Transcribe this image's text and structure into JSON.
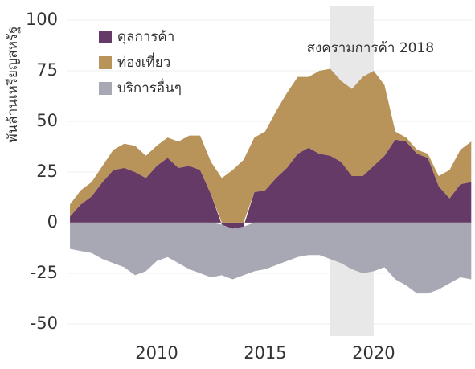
{
  "chart_data": {
    "type": "stacked_area",
    "y_label": "พันล้านเหรียญสหรัฐ",
    "annotation": {
      "text": "สงครามการค้า 2018",
      "span": [
        2018,
        2020
      ]
    },
    "x": [
      2006,
      2006.5,
      2007,
      2007.5,
      2008,
      2008.5,
      2009,
      2009.5,
      2010,
      2010.5,
      2011,
      2011.5,
      2012,
      2012.5,
      2013,
      2013.5,
      2014,
      2014.5,
      2015,
      2015.5,
      2016,
      2016.5,
      2017,
      2017.5,
      2018,
      2018.5,
      2019,
      2019.5,
      2020,
      2020.5,
      2021,
      2021.5,
      2022,
      2022.5,
      2023,
      2023.5,
      2024,
      2024.5
    ],
    "series": [
      {
        "name": "ดุลการค้า",
        "color": "#663a66",
        "values": [
          3,
          9,
          13,
          20,
          26,
          27,
          25,
          22,
          28,
          32,
          27,
          28,
          26,
          14,
          -1,
          -3,
          -2,
          15,
          16,
          22,
          27,
          34,
          37,
          34,
          33,
          30,
          23,
          23,
          28,
          33,
          41,
          40,
          34,
          32,
          18,
          12,
          19,
          20
        ]
      },
      {
        "name": "ท่องเที่ยว",
        "color": "#b8935a",
        "values": [
          6,
          7,
          7,
          8,
          10,
          12,
          13,
          11,
          10,
          10,
          13,
          15,
          17,
          16,
          22,
          26,
          31,
          27,
          29,
          33,
          37,
          38,
          35,
          41,
          43,
          40,
          43,
          49,
          47,
          35,
          4,
          2,
          2,
          2,
          5,
          14,
          17,
          20
        ]
      },
      {
        "name": "บริการอื่นๆ",
        "color": "#a8a8b4",
        "values": [
          -13,
          -14,
          -15,
          -18,
          -20,
          -22,
          -26,
          -24,
          -19,
          -17,
          -20,
          -23,
          -25,
          -27,
          -25,
          -25,
          -24,
          -24,
          -23,
          -21,
          -19,
          -17,
          -16,
          -16,
          -18,
          -20,
          -23,
          -25,
          -24,
          -22,
          -28,
          -31,
          -35,
          -35,
          -33,
          -30,
          -27,
          -28
        ]
      }
    ],
    "xlim": [
      2005.85,
      2024.6
    ],
    "ylim": [
      -56,
      107
    ],
    "xticks": [
      2010,
      2015,
      2020
    ],
    "yticks": [
      100,
      75,
      50,
      25,
      0,
      -25,
      -50
    ],
    "grid": true
  }
}
